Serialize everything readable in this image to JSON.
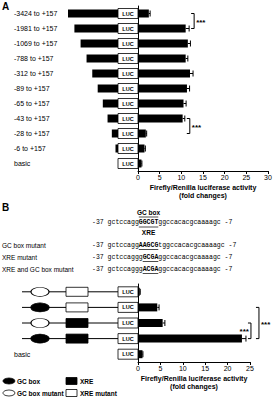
{
  "chart_data": [
    {
      "type": "bar",
      "panel": "A",
      "orientation": "horizontal",
      "categories": [
        "-3424 to +157",
        "-1981 to +157",
        "-1069 to +157",
        "-788 to +157",
        "-312 to +157",
        "-89 to +157",
        "-65 to +157",
        "-43 to +157",
        "-28 to +157",
        "-6 to +157",
        "basic"
      ],
      "values": [
        2.5,
        11,
        11.5,
        11,
        12,
        11.3,
        10.5,
        10.3,
        1.8,
        1.5,
        0.8
      ],
      "errors": [
        0.3,
        0.8,
        0.6,
        0.5,
        0.7,
        0.6,
        0.6,
        0.5,
        0.2,
        0.2,
        0.1
      ],
      "color": "#000000",
      "reporter": "LUC",
      "xlabel": "Firefly/Renilla luciferase activity\n(fold changes)",
      "xlim": [
        0,
        30
      ],
      "xticks": [
        0,
        5,
        10,
        15,
        20,
        25,
        30
      ],
      "annotations": [
        {
          "from": 0,
          "to": 1,
          "label": "***"
        },
        {
          "from": 7,
          "to": 8,
          "label": "***"
        }
      ]
    },
    {
      "type": "bar",
      "panel": "B",
      "orientation": "horizontal",
      "categories": [
        null,
        null,
        null,
        null,
        "basic"
      ],
      "values": [
        0.4,
        4.3,
        5.5,
        23.2,
        1
      ],
      "errors": [
        0.1,
        0.4,
        0.5,
        0.9,
        0.1
      ],
      "color": "#000000",
      "reporter": "LUC",
      "gc_box_mutant": [
        true,
        false,
        true,
        false,
        null
      ],
      "xre_mutant": [
        true,
        true,
        false,
        false,
        null
      ],
      "xlabel": "Firefly/Renilla luciferase activity\n(fold changes)",
      "xlim": [
        0,
        25
      ],
      "xticks": [
        0,
        5,
        10,
        15,
        20,
        25
      ],
      "annotations": [
        {
          "from": 2,
          "to": 3,
          "label": "***"
        },
        {
          "from": 1,
          "to": 3,
          "label": "***"
        }
      ],
      "wild_type_sequence": {
        "above": "GC box",
        "below": "XRE",
        "parts": [
          "-37 gctccagg",
          "GGCGT",
          "ggccacacgcaaaagc -7"
        ]
      },
      "mutant_sequences": [
        {
          "label": "GC box mutant",
          "parts": [
            "-37 gctccagg",
            "AAGCG",
            "tggccacacgcaaaagc -7"
          ]
        },
        {
          "label": "XRE mutant",
          "parts": [
            "-37 gctccaggg",
            "GCGA",
            "ggccacacgcaaaagc -7"
          ]
        },
        {
          "label": "XRE and GC box mutant",
          "parts": [
            "-37 gctccaggg",
            "ACGA",
            "ggccacacgcaaaagc -7"
          ]
        }
      ],
      "legend_items": [
        "GC box",
        "XRE",
        "GC box mutant",
        "XRE mutant"
      ]
    }
  ]
}
